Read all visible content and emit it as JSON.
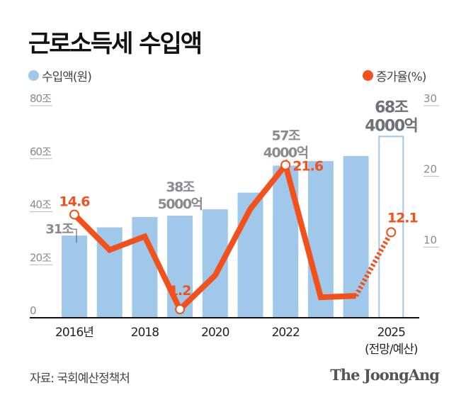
{
  "title": "근로소득세 수입액",
  "legend": {
    "bars": "수입액(원)",
    "line": "증가율(%)"
  },
  "source": "자료: 국회예산정책처",
  "brand": "The JoongAng",
  "colors": {
    "bar": "#9fc8ea",
    "bar_outline": "#9fc8ea",
    "line": "#f2511b",
    "axis_text": "#8a8a90",
    "value_label": "#8a8a90"
  },
  "chart_data": {
    "type": "bar+line",
    "title": "근로소득세 수입액",
    "categories": [
      "2016",
      "2017",
      "2018",
      "2019",
      "2020",
      "2021",
      "2022",
      "2023",
      "2024",
      "2025"
    ],
    "x_tick_labels": [
      {
        "category": "2016",
        "label": "2016년"
      },
      {
        "category": "2018",
        "label": "2018"
      },
      {
        "category": "2020",
        "label": "2020"
      },
      {
        "category": "2022",
        "label": "2022"
      },
      {
        "category": "2025",
        "label": "2025",
        "sublabel": "(전망/예산)"
      }
    ],
    "series": [
      {
        "name": "수입액(원)",
        "type": "bar",
        "axis": "left",
        "unit": "조",
        "values": [
          31.0,
          34.1,
          38.0,
          38.5,
          40.9,
          47.2,
          57.4,
          59.1,
          61.0,
          68.4
        ],
        "projected": [
          false,
          false,
          false,
          false,
          false,
          false,
          false,
          false,
          false,
          true
        ]
      },
      {
        "name": "증가율(%)",
        "type": "line",
        "axis": "right",
        "values": [
          14.6,
          9.6,
          11.5,
          1.2,
          6.0,
          15.4,
          21.6,
          2.9,
          3.1,
          12.1
        ],
        "dashed_from": "2024"
      }
    ],
    "left_axis": {
      "range": [
        0,
        80
      ],
      "ticks": [
        "0",
        "20조",
        "40조",
        "60조",
        "80조"
      ],
      "tick_values": [
        0,
        20,
        40,
        60,
        80
      ]
    },
    "right_axis": {
      "range": [
        0,
        30
      ],
      "ticks": [
        "10",
        "20",
        "30"
      ],
      "tick_values": [
        10,
        20,
        30
      ]
    },
    "bar_labels": [
      {
        "category": "2016",
        "lines": [
          "31조"
        ]
      },
      {
        "category": "2019",
        "lines": [
          "38조",
          "5000억"
        ]
      },
      {
        "category": "2022",
        "lines": [
          "57조",
          "4000억"
        ]
      },
      {
        "category": "2025",
        "lines": [
          "68조",
          "4000억"
        ]
      }
    ],
    "line_labels": [
      {
        "category": "2016",
        "text": "14.6"
      },
      {
        "category": "2019",
        "text": "1.2"
      },
      {
        "category": "2022",
        "text": "21.6"
      },
      {
        "category": "2025",
        "text": "12.1"
      }
    ],
    "grid": false,
    "legend_position": "top"
  }
}
